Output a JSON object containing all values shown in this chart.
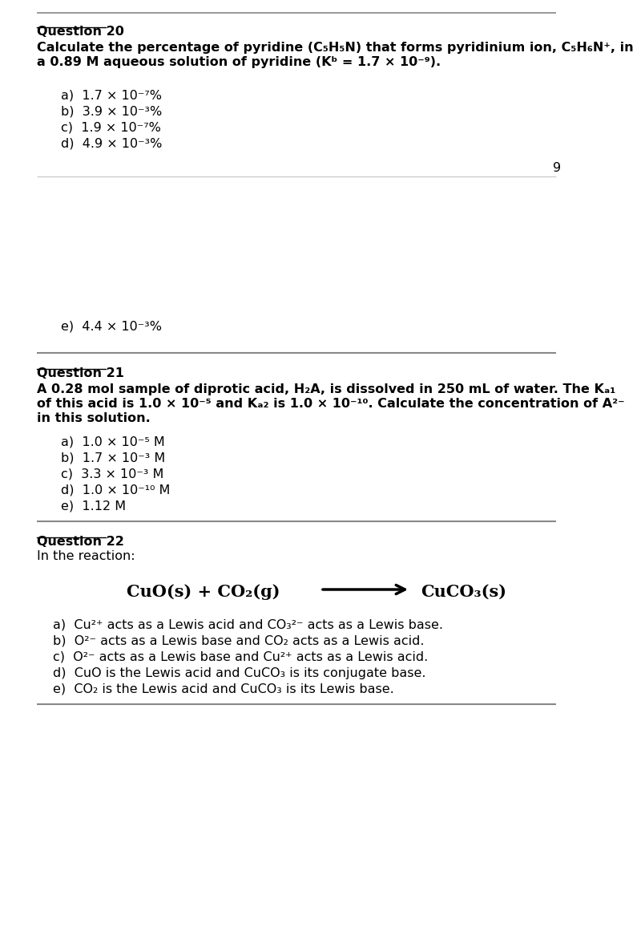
{
  "bg_color": "#ffffff",
  "q20_label": "Question 20",
  "q20_line1": "Calculate the percentage of pyridine (C₅H₅N) that forms pyridinium ion, C₅H₆N⁺, in",
  "q20_line2": "a 0.89 M aqueous solution of pyridine (Kᵇ = 1.7 × 10⁻⁹).",
  "q20_answers": [
    "a)  1.7 × 10⁻⁷%",
    "b)  3.9 × 10⁻³%",
    "c)  1.9 × 10⁻⁷%",
    "d)  4.9 × 10⁻³%",
    "e)  4.4 × 10⁻³%"
  ],
  "page_number": "9",
  "q21_label": "Question 21",
  "q21_line1": "A 0.28 mol sample of diprotic acid, H₂A, is dissolved in 250 mL of water. The Kₐ₁",
  "q21_line2": "of this acid is 1.0 × 10⁻⁵ and Kₐ₂ is 1.0 × 10⁻¹⁰. Calculate the concentration of A²⁻",
  "q21_line3": "in this solution.",
  "q21_answers": [
    "a)  1.0 × 10⁻⁵ M",
    "b)  1.7 × 10⁻³ M",
    "c)  3.3 × 10⁻³ M",
    "d)  1.0 × 10⁻¹⁰ M",
    "e)  1.12 M"
  ],
  "q22_label": "Question 22",
  "q22_intro": "In the reaction:",
  "q22_reaction_left": "CuO(s) + CO₂(g)",
  "q22_reaction_right": "CuCO₃(s)",
  "q22_answers": [
    "a)  Cu²⁺ acts as a Lewis acid and CO₃²⁻ acts as a Lewis base.",
    "b)  O²⁻ acts as a Lewis base and CO₂ acts as a Lewis acid.",
    "c)  O²⁻ acts as a Lewis base and Cu²⁺ acts as a Lewis acid.",
    "d)  CuO is the Lewis acid and CuCO₃ is its conjugate base.",
    "e)  CO₂ is the Lewis acid and CuCO₃ is its Lewis base."
  ]
}
